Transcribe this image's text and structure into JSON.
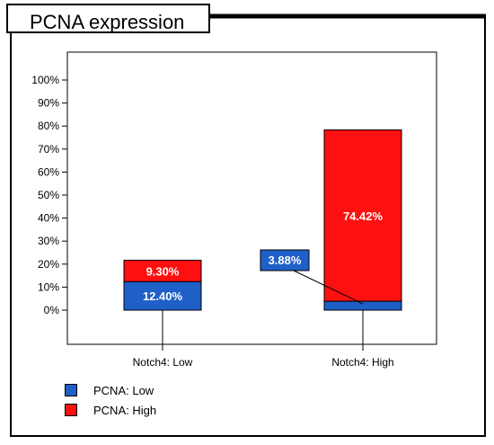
{
  "header": {
    "title": "PCNA expression"
  },
  "colors": {
    "low": "#1f5fc8",
    "high": "#ff1010"
  },
  "chart_data": {
    "type": "bar",
    "stacked": true,
    "title": "PCNA expression",
    "xlabel": "",
    "ylabel": "",
    "categories": [
      "Notch4: Low",
      "Notch4: High"
    ],
    "series": [
      {
        "name": "PCNA: Low",
        "values": [
          12.4,
          3.88
        ],
        "labels": [
          "12.40%",
          "3.88%"
        ]
      },
      {
        "name": "PCNA: High",
        "values": [
          9.3,
          74.42
        ],
        "labels": [
          "9.30%",
          "74.42%"
        ]
      }
    ],
    "ylim": [
      0,
      100
    ],
    "y_ticks": [
      "0%",
      "10%",
      "20%",
      "30%",
      "40%",
      "50%",
      "60%",
      "70%",
      "80%",
      "90%",
      "100%"
    ],
    "grid": false,
    "legend_position": "bottom-left"
  }
}
